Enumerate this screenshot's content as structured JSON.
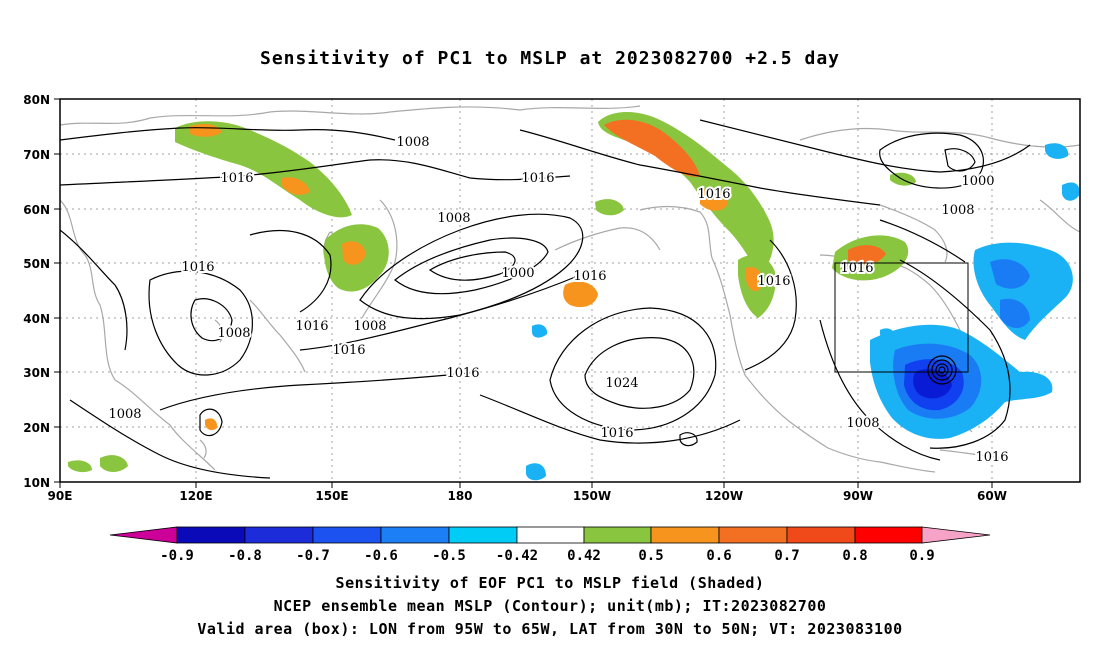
{
  "title": "Sensitivity of PC1 to MSLP at 2023082700 +2.5 day",
  "map": {
    "lon_labels": [
      "90E",
      "120E",
      "150E",
      "180",
      "150W",
      "120W",
      "90W",
      "60W"
    ],
    "lat_labels": [
      "80N",
      "70N",
      "60N",
      "50N",
      "40N",
      "30N",
      "20N",
      "10N"
    ],
    "contour_labels": [
      "1008",
      "1016",
      "1008",
      "1016",
      "1000",
      "1016",
      "1016",
      "1008",
      "1016",
      "1008",
      "1016",
      "1016",
      "1024",
      "1016",
      "1016",
      "1016",
      "1016",
      "1000",
      "1008",
      "1008",
      "1016",
      "1008"
    ],
    "valid_box": {
      "lon_from": "95W",
      "lon_to": "65W",
      "lat_from": "30N",
      "lat_to": "50N"
    },
    "colors": {
      "contour": "#000000",
      "coast": "#a8a8a8",
      "grid": "#a0a0a0",
      "pos_05": "#8ac53f",
      "pos_06": "#f7941d",
      "pos_07": "#f36f21",
      "neg_05": "#1ab2f5",
      "neg_06": "#1a7cf5",
      "neg_07": "#1040f0",
      "neg_08": "#0a1bd6"
    }
  },
  "colorbar": {
    "labels": [
      "-0.9",
      "-0.8",
      "-0.7",
      "-0.6",
      "-0.5",
      "-0.42",
      "0.42",
      "0.5",
      "0.6",
      "0.7",
      "0.8",
      "0.9"
    ],
    "colors": [
      "#cc0099",
      "#0a0ab8",
      "#1b2cd8",
      "#1b52f0",
      "#1c7ff5",
      "#20b2f5",
      "#00ccf5",
      "#ffffff",
      "#8ac53f",
      "#f7941d",
      "#f36f21",
      "#f04a1a",
      "#ff0000",
      "#f7a3c8"
    ]
  },
  "footer": {
    "line1": "Sensitivity of EOF PC1 to MSLP field (Shaded)",
    "line2": "NCEP ensemble mean MSLP (Contour); unit(mb); IT:2023082700",
    "line3": "Valid area (box): LON from 95W to 65W, LAT from 30N to 50N; VT: 2023083100"
  }
}
